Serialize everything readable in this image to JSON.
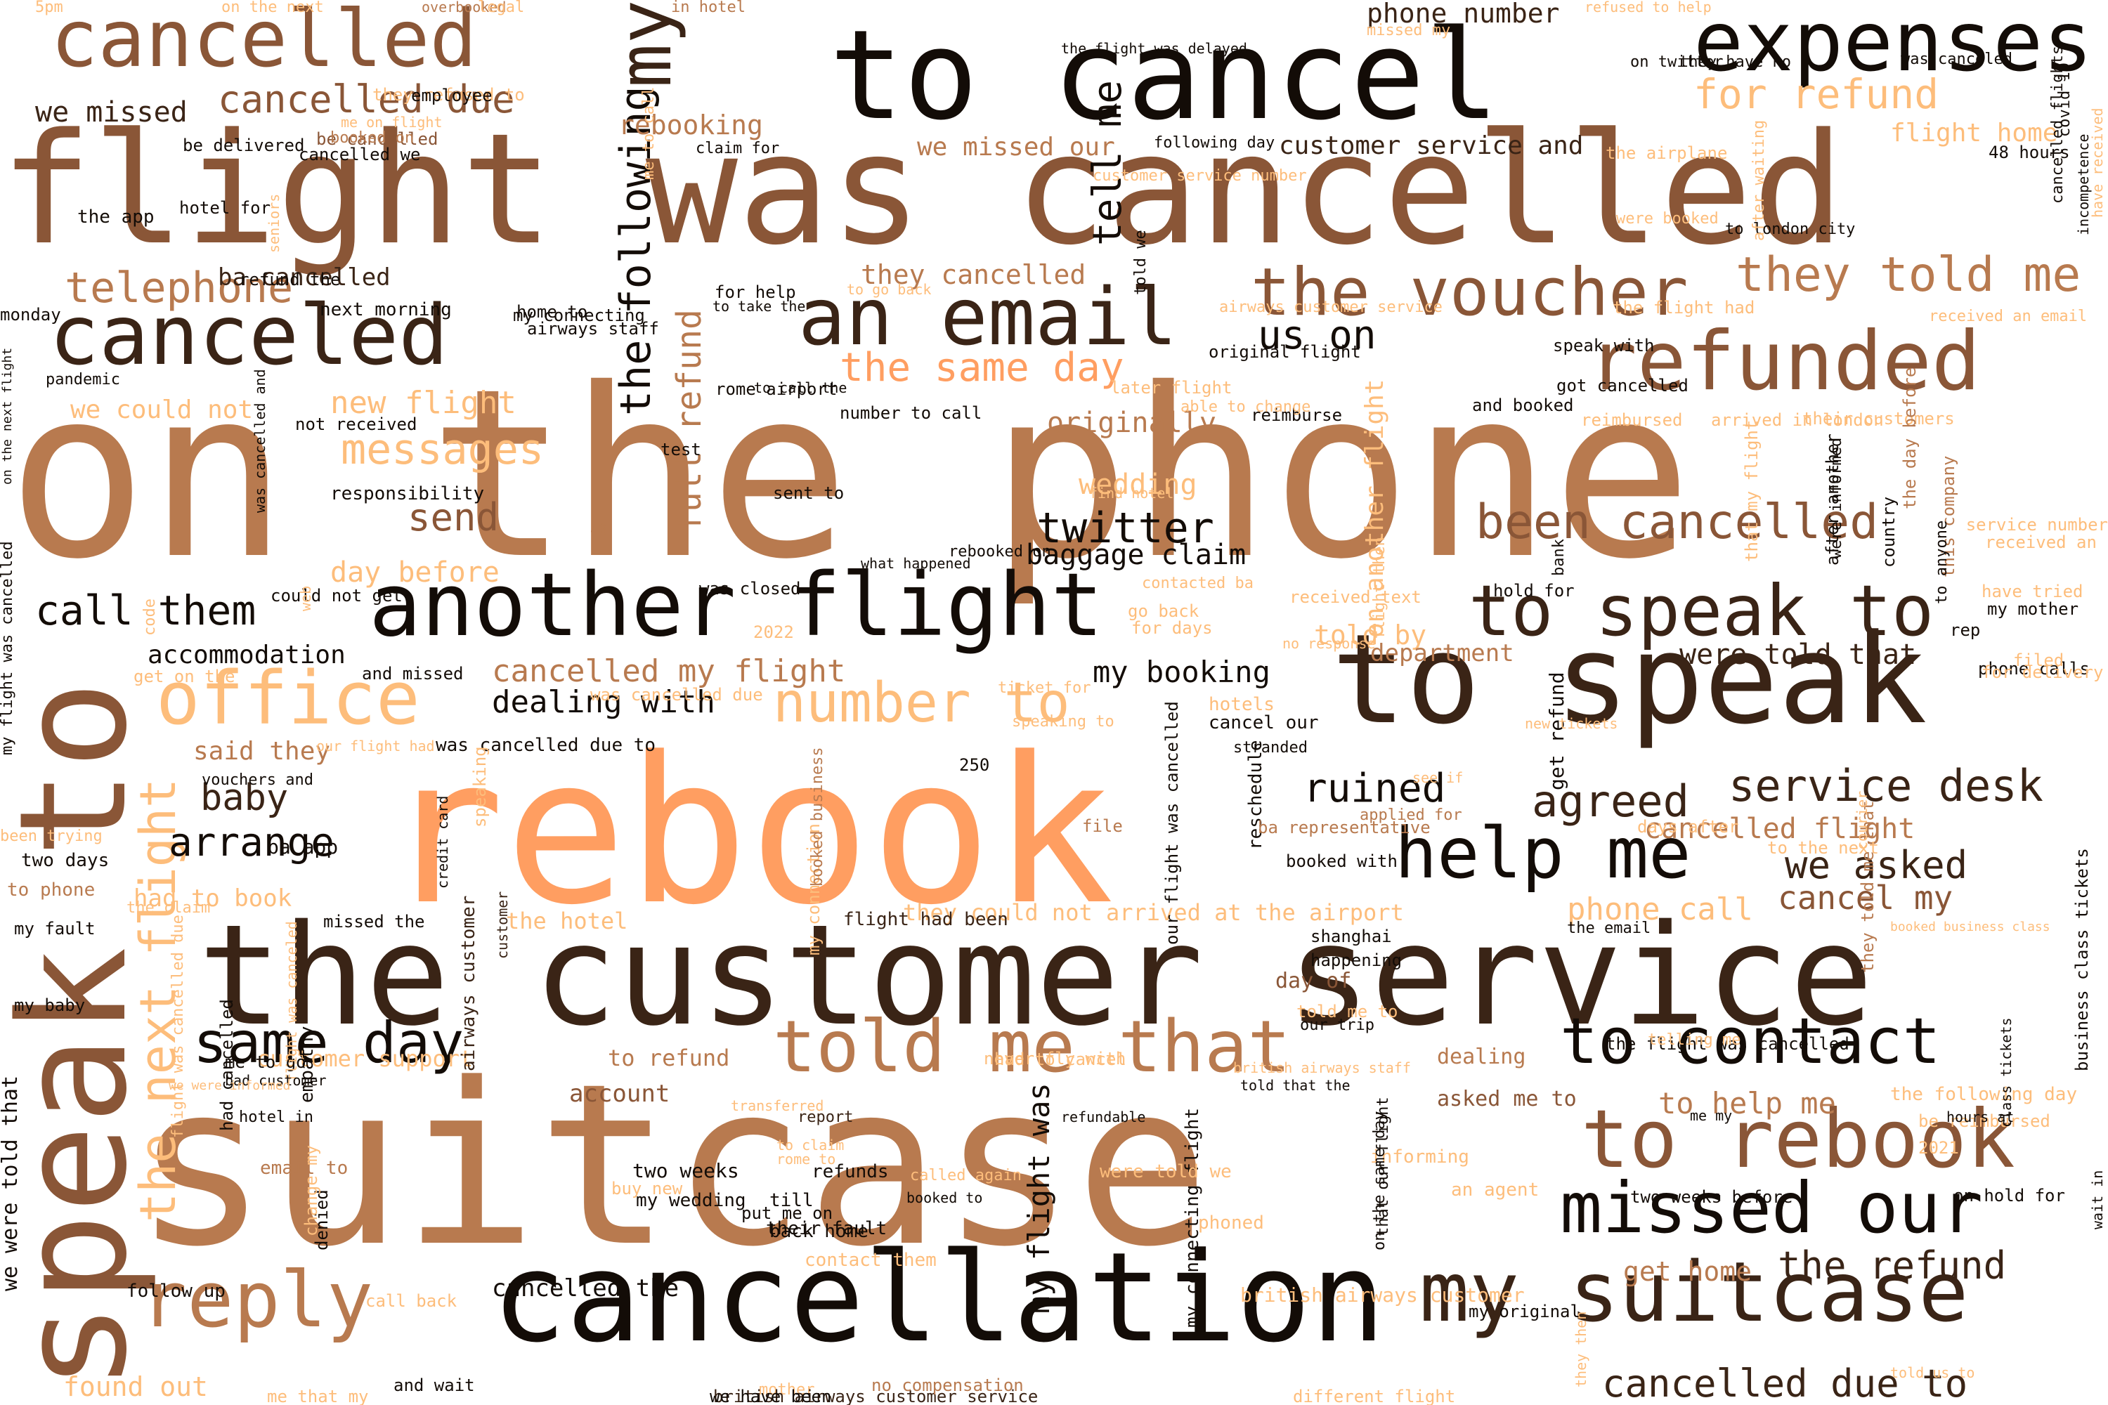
{
  "palette": {
    "tan": "#b87a4f",
    "brown": "#8a5637",
    "dark": "#3a2416",
    "black": "#130c07",
    "orange": "#ff9e61",
    "peach": "#fdbd7b"
  },
  "words": [
    {
      "text": "on the phone",
      "color": "tan"
    },
    {
      "text": "suitcase",
      "color": "tan"
    },
    {
      "text": "rebook",
      "color": "orange"
    },
    {
      "text": "flight was cancelled",
      "color": "brown"
    },
    {
      "text": "the customer service",
      "color": "dark"
    },
    {
      "text": "to cancel",
      "color": "black"
    },
    {
      "text": "cancellation",
      "color": "black"
    },
    {
      "text": "speak to",
      "color": "brown"
    },
    {
      "text": "to speak",
      "color": "dark"
    },
    {
      "text": "another flight",
      "color": "black"
    },
    {
      "text": "expenses",
      "color": "black"
    },
    {
      "text": "cancelled",
      "color": "brown"
    },
    {
      "text": "canceled",
      "color": "dark"
    },
    {
      "text": "an email",
      "color": "dark"
    },
    {
      "text": "refunded",
      "color": "brown"
    },
    {
      "text": "to speak to",
      "color": "dark"
    },
    {
      "text": "help me",
      "color": "black"
    },
    {
      "text": "to rebook",
      "color": "brown"
    },
    {
      "text": "to contact",
      "color": "black"
    },
    {
      "text": "my suitcase",
      "color": "dark"
    },
    {
      "text": "missed our",
      "color": "black"
    },
    {
      "text": "told me that",
      "color": "tan"
    },
    {
      "text": "reply",
      "color": "tan"
    },
    {
      "text": "office",
      "color": "peach"
    },
    {
      "text": "the voucher",
      "color": "brown"
    },
    {
      "text": "same day",
      "color": "black"
    },
    {
      "text": "my",
      "color": "dark"
    },
    {
      "text": "they told me",
      "color": "tan"
    },
    {
      "text": "number to",
      "color": "peach"
    },
    {
      "text": "call them",
      "color": "black"
    },
    {
      "text": "the next flight",
      "color": "peach"
    },
    {
      "text": "the following",
      "color": "black"
    },
    {
      "text": "been cancelled",
      "color": "brown"
    },
    {
      "text": "full refund",
      "color": "tan"
    },
    {
      "text": "telephone",
      "color": "tan"
    },
    {
      "text": "tell me",
      "color": "black"
    },
    {
      "text": "cancelled due to",
      "color": "dark"
    },
    {
      "text": "the same day",
      "color": "orange"
    },
    {
      "text": "for refund",
      "color": "peach"
    },
    {
      "text": "agreed",
      "color": "dark"
    },
    {
      "text": "service desk",
      "color": "dark"
    },
    {
      "text": "twitter",
      "color": "black"
    },
    {
      "text": "messages",
      "color": "peach"
    },
    {
      "text": "send",
      "color": "brown"
    },
    {
      "text": "ruined",
      "color": "black"
    },
    {
      "text": "the refund",
      "color": "dark"
    },
    {
      "text": "cancelled due",
      "color": "brown"
    },
    {
      "text": "arrange",
      "color": "black"
    },
    {
      "text": "baby",
      "color": "dark"
    },
    {
      "text": "cancel my",
      "color": "brown"
    },
    {
      "text": "we asked",
      "color": "dark"
    },
    {
      "text": "us on",
      "color": "black"
    },
    {
      "text": "flight home",
      "color": "peach"
    },
    {
      "text": "they cancelled",
      "color": "tan"
    },
    {
      "text": "to help me",
      "color": "tan"
    },
    {
      "text": "phone call",
      "color": "peach"
    },
    {
      "text": "new flight",
      "color": "peach"
    },
    {
      "text": "originally",
      "color": "tan"
    },
    {
      "text": "cancelled my flight",
      "color": "tan"
    },
    {
      "text": "were told that",
      "color": "dark"
    },
    {
      "text": "accommodation",
      "color": "black"
    },
    {
      "text": "my flight was",
      "color": "black"
    },
    {
      "text": "wedding",
      "color": "peach"
    },
    {
      "text": "day before",
      "color": "peach"
    },
    {
      "text": "we missed",
      "color": "dark"
    },
    {
      "text": "ba cancelled",
      "color": "dark"
    },
    {
      "text": "phone number",
      "color": "dark"
    },
    {
      "text": "we missed our",
      "color": "tan"
    },
    {
      "text": "customer service and",
      "color": "dark"
    },
    {
      "text": "we could not",
      "color": "peach"
    },
    {
      "text": "told by",
      "color": "peach"
    },
    {
      "text": "cancelled flight",
      "color": "tan"
    },
    {
      "text": "dealing with",
      "color": "black"
    },
    {
      "text": "said they",
      "color": "tan"
    },
    {
      "text": "my booking",
      "color": "black"
    },
    {
      "text": "rebooking",
      "color": "tan"
    },
    {
      "text": "department",
      "color": "tan"
    },
    {
      "text": "baggage claim",
      "color": "black"
    },
    {
      "text": "found out",
      "color": "peach"
    },
    {
      "text": "cancelled the",
      "color": "black"
    },
    {
      "text": "get home",
      "color": "tan"
    },
    {
      "text": "had to book",
      "color": "peach"
    },
    {
      "text": "they could not arrived at the airport",
      "color": "peach"
    },
    {
      "text": "the hotel",
      "color": "peach"
    },
    {
      "text": "customer support",
      "color": "peach"
    },
    {
      "text": "account",
      "color": "brown"
    },
    {
      "text": "asked me to",
      "color": "brown"
    },
    {
      "text": "dealing",
      "color": "tan"
    },
    {
      "text": "to refund",
      "color": "tan"
    },
    {
      "text": "british airways customer",
      "color": "peach"
    },
    {
      "text": "my connecting flight",
      "color": "black"
    },
    {
      "text": "get refund",
      "color": "black"
    },
    {
      "text": "the following day",
      "color": "peach"
    },
    {
      "text": "we were told that",
      "color": "black"
    },
    {
      "text": "airways customer",
      "color": "dark"
    },
    {
      "text": "day of",
      "color": "brown"
    },
    {
      "text": "two weeks before",
      "color": "black"
    },
    {
      "text": "on hold for",
      "color": "black"
    },
    {
      "text": "received an email",
      "color": "peach"
    },
    {
      "text": "airways customer service",
      "color": "peach"
    },
    {
      "text": "48 hours",
      "color": "black"
    },
    {
      "text": "flight had been",
      "color": "dark"
    },
    {
      "text": "missed the",
      "color": "black"
    },
    {
      "text": "two weeks",
      "color": "black"
    },
    {
      "text": "report",
      "color": "dark"
    },
    {
      "text": "mother",
      "color": "peach"
    },
    {
      "text": "british airways customer service",
      "color": "dark"
    },
    {
      "text": "no compensation",
      "color": "tan"
    },
    {
      "text": "we have been",
      "color": "black"
    },
    {
      "text": "different flight",
      "color": "peach"
    },
    {
      "text": "and wait",
      "color": "black"
    },
    {
      "text": "reschedule",
      "color": "black"
    },
    {
      "text": "got cancelled",
      "color": "black"
    },
    {
      "text": "and booked",
      "color": "black"
    },
    {
      "text": "reimburse",
      "color": "black"
    },
    {
      "text": "original flight",
      "color": "black"
    },
    {
      "text": "later flight",
      "color": "peach"
    },
    {
      "text": "speak with",
      "color": "black"
    },
    {
      "text": "reimbursed",
      "color": "peach"
    },
    {
      "text": "arrived in london",
      "color": "peach"
    },
    {
      "text": "their customers",
      "color": "peach"
    },
    {
      "text": "service number",
      "color": "peach"
    },
    {
      "text": "received an",
      "color": "peach"
    },
    {
      "text": "have tried",
      "color": "peach"
    },
    {
      "text": "my mother",
      "color": "black"
    },
    {
      "text": "rep",
      "color": "black"
    },
    {
      "text": "phone calls",
      "color": "black"
    },
    {
      "text": "filed",
      "color": "peach"
    },
    {
      "text": "for delivery",
      "color": "peach"
    },
    {
      "text": "hold for",
      "color": "black"
    },
    {
      "text": "received text",
      "color": "peach"
    },
    {
      "text": "was closed",
      "color": "black"
    },
    {
      "text": "contacted ba",
      "color": "peach"
    },
    {
      "text": "go back",
      "color": "peach"
    },
    {
      "text": "for days",
      "color": "peach"
    },
    {
      "text": "no response",
      "color": "peach"
    },
    {
      "text": "could not get",
      "color": "black"
    },
    {
      "text": "was cancelled due to",
      "color": "black"
    },
    {
      "text": "was cancelled due",
      "color": "peach"
    },
    {
      "text": "ticket for",
      "color": "peach"
    },
    {
      "text": "speaking to",
      "color": "peach"
    },
    {
      "text": "hotels",
      "color": "peach"
    },
    {
      "text": "cancel our",
      "color": "black"
    },
    {
      "text": "stranded",
      "color": "black"
    },
    {
      "text": "new tickets",
      "color": "peach"
    },
    {
      "text": "see if",
      "color": "peach"
    },
    {
      "text": "days after",
      "color": "peach"
    },
    {
      "text": "to the next",
      "color": "peach"
    },
    {
      "text": "ba representative",
      "color": "tan"
    },
    {
      "text": "applied for",
      "color": "tan"
    },
    {
      "text": "booked with",
      "color": "black"
    },
    {
      "text": "shanghai",
      "color": "black"
    },
    {
      "text": "happening",
      "color": "black"
    },
    {
      "text": "told me to",
      "color": "peach"
    },
    {
      "text": "our trip",
      "color": "black"
    },
    {
      "text": "the email",
      "color": "black"
    },
    {
      "text": "booked business class",
      "color": "peach"
    },
    {
      "text": "the flight was cancelled",
      "color": "black"
    },
    {
      "text": "telling me",
      "color": "peach"
    },
    {
      "text": "me my",
      "color": "black"
    },
    {
      "text": "be reimbursed",
      "color": "peach"
    },
    {
      "text": "hours at",
      "color": "black"
    },
    {
      "text": "2021",
      "color": "peach"
    },
    {
      "text": "an agent",
      "color": "peach"
    },
    {
      "text": "informing",
      "color": "peach"
    },
    {
      "text": "phoned",
      "color": "peach"
    },
    {
      "text": "my original",
      "color": "black"
    },
    {
      "text": "told us to",
      "color": "peach"
    },
    {
      "text": "contact them",
      "color": "peach"
    },
    {
      "text": "follow up",
      "color": "black"
    },
    {
      "text": "denied",
      "color": "black"
    },
    {
      "text": "call back",
      "color": "peach"
    },
    {
      "text": "me that my",
      "color": "peach"
    },
    {
      "text": "were told we",
      "color": "peach"
    },
    {
      "text": "refunds",
      "color": "black"
    },
    {
      "text": "till",
      "color": "black"
    },
    {
      "text": "my wedding",
      "color": "black"
    },
    {
      "text": "their fault",
      "color": "black"
    },
    {
      "text": "back home",
      "color": "black"
    },
    {
      "text": "put me on",
      "color": "black"
    },
    {
      "text": "booked to",
      "color": "black"
    },
    {
      "text": "called again",
      "color": "peach"
    },
    {
      "text": "buy new",
      "color": "peach"
    },
    {
      "text": "to claim",
      "color": "peach"
    },
    {
      "text": "rome to",
      "color": "peach"
    },
    {
      "text": "transferred",
      "color": "peach"
    },
    {
      "text": "never fly with",
      "color": "peach"
    },
    {
      "text": "had to cancel",
      "color": "peach"
    },
    {
      "text": "refundable",
      "color": "black"
    },
    {
      "text": "told that the",
      "color": "black"
    },
    {
      "text": "british airways staff",
      "color": "peach"
    },
    {
      "text": "empathy",
      "color": "black"
    },
    {
      "text": "email to",
      "color": "tan"
    },
    {
      "text": "me to go",
      "color": "black"
    },
    {
      "text": "hotel in",
      "color": "black"
    },
    {
      "text": "had cancelled",
      "color": "black"
    },
    {
      "text": "flight was canceled",
      "color": "peach"
    },
    {
      "text": "bad customer",
      "color": "black"
    },
    {
      "text": "we were informed",
      "color": "peach"
    },
    {
      "text": "my baby",
      "color": "black"
    },
    {
      "text": "my fault",
      "color": "black"
    },
    {
      "text": "the claim",
      "color": "peach"
    },
    {
      "text": "to phone",
      "color": "tan"
    },
    {
      "text": "two days",
      "color": "black"
    },
    {
      "text": "been trying",
      "color": "peach"
    },
    {
      "text": "ba app",
      "color": "black"
    },
    {
      "text": "vouchers and",
      "color": "black"
    },
    {
      "text": "our flight had",
      "color": "peach"
    },
    {
      "text": "get on the",
      "color": "peach"
    },
    {
      "text": "and missed",
      "color": "black"
    },
    {
      "text": "web",
      "color": "peach"
    },
    {
      "text": "2022",
      "color": "peach"
    },
    {
      "text": "250",
      "color": "black"
    },
    {
      "text": "file",
      "color": "tan"
    },
    {
      "text": "rebooked on",
      "color": "black"
    },
    {
      "text": "what happened",
      "color": "black"
    },
    {
      "text": "find hotel",
      "color": "peach"
    },
    {
      "text": "48",
      "color": "tan"
    },
    {
      "text": "responsibility",
      "color": "black"
    },
    {
      "text": "not received",
      "color": "black"
    },
    {
      "text": "pandemic",
      "color": "black"
    },
    {
      "text": "test",
      "color": "black"
    },
    {
      "text": "sent to",
      "color": "black"
    },
    {
      "text": "rome airport",
      "color": "black"
    },
    {
      "text": "number to call",
      "color": "black"
    },
    {
      "text": "to call the",
      "color": "black"
    },
    {
      "text": "able to change",
      "color": "peach"
    },
    {
      "text": "home to",
      "color": "black"
    },
    {
      "text": "airways staff",
      "color": "black"
    },
    {
      "text": "my connecting",
      "color": "black"
    },
    {
      "text": "next morning",
      "color": "black"
    },
    {
      "text": "for help",
      "color": "black"
    },
    {
      "text": "to take the",
      "color": "black"
    },
    {
      "text": "refund the",
      "color": "black"
    },
    {
      "text": "hotel for",
      "color": "black"
    },
    {
      "text": "the app",
      "color": "black"
    },
    {
      "text": "monday",
      "color": "black"
    },
    {
      "text": "be delivered",
      "color": "black"
    },
    {
      "text": "cancelled we",
      "color": "black"
    },
    {
      "text": "be cancelled",
      "color": "brown"
    },
    {
      "text": "booked on",
      "color": "tan"
    },
    {
      "text": "me on flight",
      "color": "peach"
    },
    {
      "text": "they refused to",
      "color": "peach"
    },
    {
      "text": "employee",
      "color": "black"
    },
    {
      "text": "claim for",
      "color": "black"
    },
    {
      "text": "following day",
      "color": "black"
    },
    {
      "text": "the airplane",
      "color": "peach"
    },
    {
      "text": "to go back",
      "color": "peach"
    },
    {
      "text": "customer service number",
      "color": "peach"
    },
    {
      "text": "the flight had",
      "color": "peach"
    },
    {
      "text": "were booked",
      "color": "peach"
    },
    {
      "text": "to london city",
      "color": "black"
    },
    {
      "text": "5pm",
      "color": "peach"
    },
    {
      "text": "on the next",
      "color": "peach"
    },
    {
      "text": "overbooked",
      "color": "tan"
    },
    {
      "text": "legal",
      "color": "peach"
    },
    {
      "text": "in hotel",
      "color": "tan"
    },
    {
      "text": "the flight was delayed",
      "color": "black"
    },
    {
      "text": "missed my",
      "color": "peach"
    },
    {
      "text": "refused to help",
      "color": "peach"
    },
    {
      "text": "on twitter",
      "color": "black"
    },
    {
      "text": "they have no",
      "color": "black"
    },
    {
      "text": "was canceled",
      "color": "black"
    },
    {
      "text": "incompetence",
      "color": "black"
    },
    {
      "text": "my flight was cancelled",
      "color": "black"
    },
    {
      "text": "on the next flight",
      "color": "black"
    },
    {
      "text": "seniors",
      "color": "peach"
    },
    {
      "text": "me to call",
      "color": "peach"
    },
    {
      "text": "told we",
      "color": "black"
    },
    {
      "text": "after waiting",
      "color": "peach"
    },
    {
      "text": "covid 19",
      "color": "black"
    },
    {
      "text": "cancelled flights",
      "color": "black"
    },
    {
      "text": "have received",
      "color": "peach"
    },
    {
      "text": "was cancelled and",
      "color": "black"
    },
    {
      "text": "code",
      "color": "peach"
    },
    {
      "text": "on another flight",
      "color": "peach"
    },
    {
      "text": "that my flight",
      "color": "peach"
    },
    {
      "text": "flight then",
      "color": "peach"
    },
    {
      "text": "bank",
      "color": "black"
    },
    {
      "text": "after another",
      "color": "black"
    },
    {
      "text": "were informed",
      "color": "black"
    },
    {
      "text": "country",
      "color": "black"
    },
    {
      "text": "this company",
      "color": "tan"
    },
    {
      "text": "the day before",
      "color": "tan"
    },
    {
      "text": "to anyone",
      "color": "black"
    },
    {
      "text": "flight was cancelled due",
      "color": "peach"
    },
    {
      "text": "change my",
      "color": "peach"
    },
    {
      "text": "credit card",
      "color": "black"
    },
    {
      "text": "my connection",
      "color": "peach"
    },
    {
      "text": "booked business",
      "color": "tan"
    },
    {
      "text": "speaking",
      "color": "peach"
    },
    {
      "text": "customer",
      "color": "dark"
    },
    {
      "text": "our flight was cancelled",
      "color": "black"
    },
    {
      "text": "they told me that",
      "color": "tan"
    },
    {
      "text": "courier",
      "color": "peach"
    },
    {
      "text": "wait in",
      "color": "black"
    },
    {
      "text": "business class tickets",
      "color": "black"
    },
    {
      "text": "class tickets",
      "color": "black"
    },
    {
      "text": "that our flight",
      "color": "black"
    },
    {
      "text": "on the same day",
      "color": "black"
    },
    {
      "text": "they then",
      "color": "peach"
    }
  ]
}
